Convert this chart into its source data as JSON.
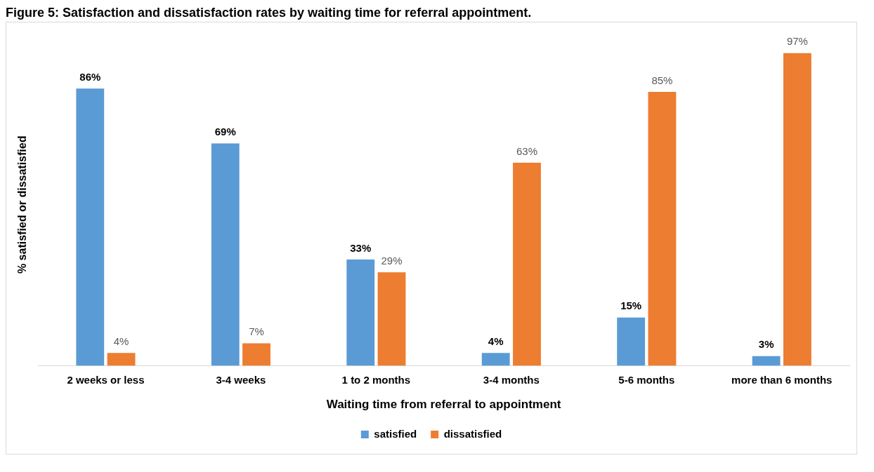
{
  "chart_data": {
    "type": "bar",
    "title": "Figure 5: Satisfaction and dissatisfaction rates by waiting time for referral appointment.",
    "xlabel": "Waiting time from referral to appointment",
    "ylabel": "% satisfied or dissatisfied",
    "categories": [
      "2 weeks or less",
      "3-4 weeks",
      "1 to 2 months",
      "3-4 months",
      "5-6 months",
      "more than 6 months"
    ],
    "series": [
      {
        "name": "satisfied",
        "color": "#5b9bd5",
        "values": [
          86,
          69,
          33,
          4,
          15,
          3
        ],
        "value_labels": [
          "86%",
          "69%",
          "33%",
          "4%",
          "15%",
          "3%"
        ]
      },
      {
        "name": "dissatisfied",
        "color": "#ed7d31",
        "values": [
          4,
          7,
          29,
          63,
          85,
          97
        ],
        "value_labels": [
          "4%",
          "7%",
          "29%",
          "63%",
          "85%",
          "97%"
        ]
      }
    ],
    "grid": false,
    "legend": "bottom"
  }
}
